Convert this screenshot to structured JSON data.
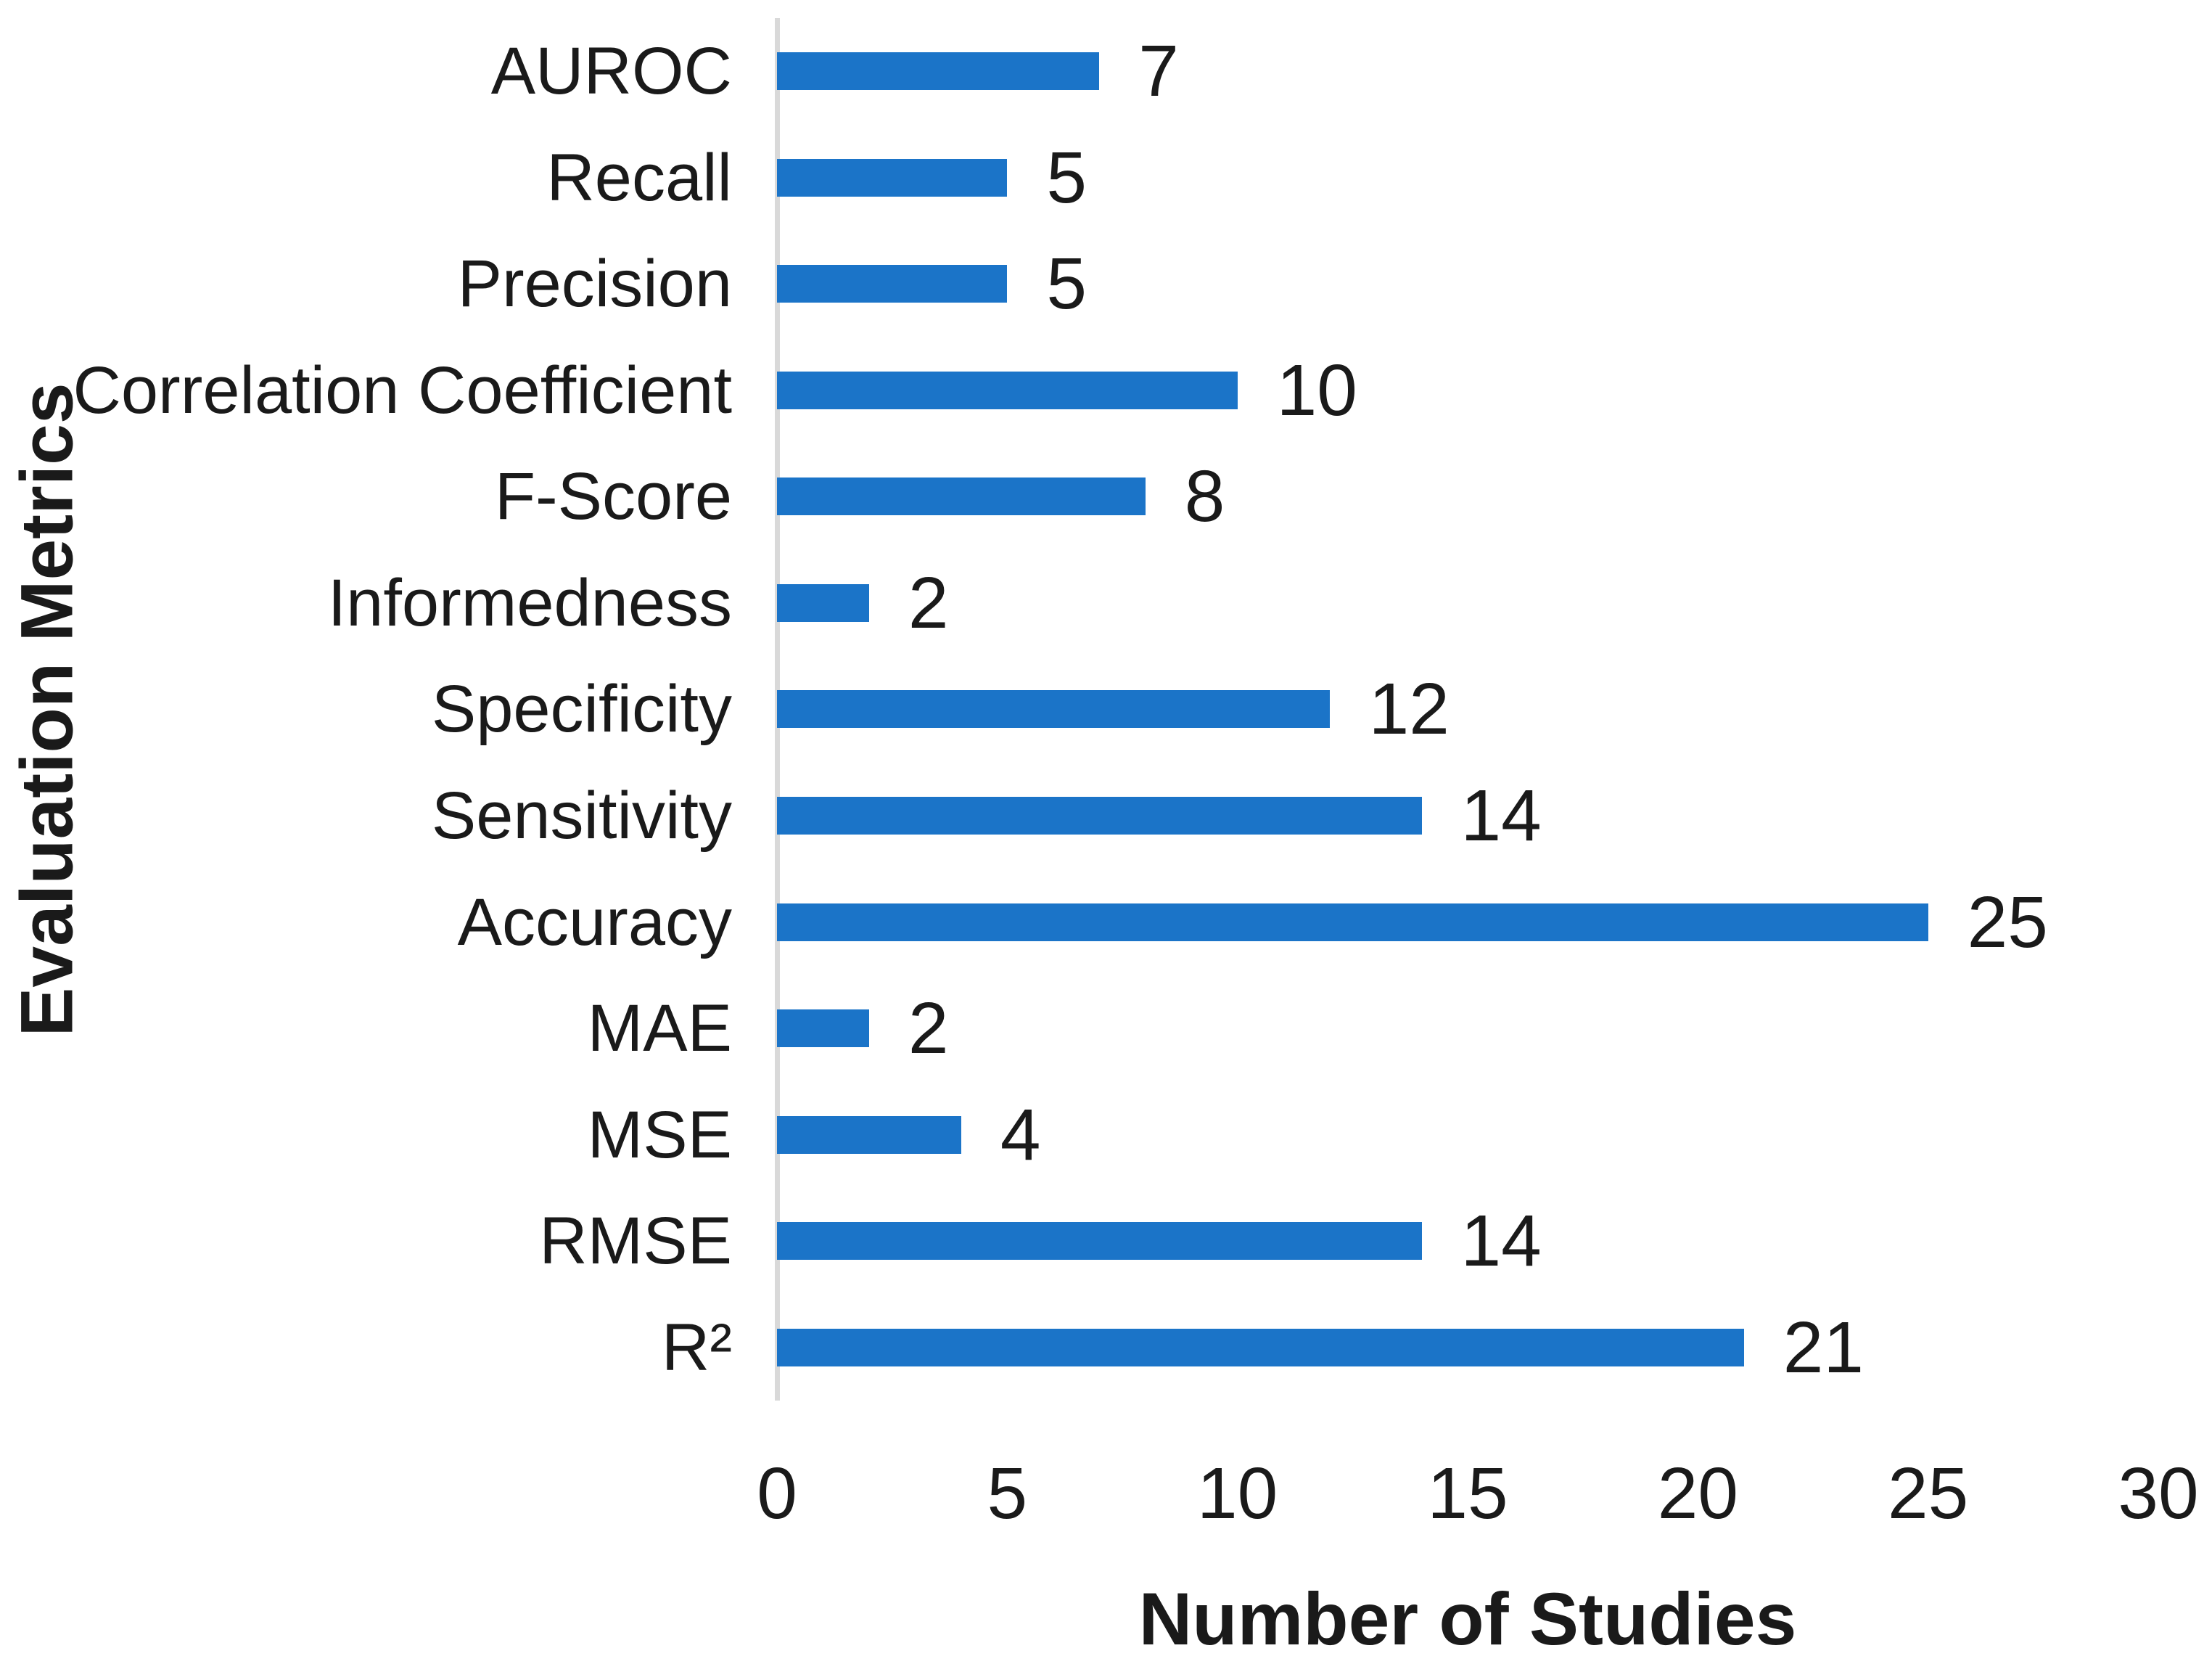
{
  "chart_data": {
    "type": "bar",
    "orientation": "horizontal",
    "title": "",
    "categories": [
      "AUROC",
      "Recall",
      "Precision",
      "Correlation Coefficient",
      "F-Score",
      "Informedness",
      "Specificity",
      "Sensitivity",
      "Accuracy",
      "MAE",
      "MSE",
      "RMSE",
      "R²"
    ],
    "values": [
      7,
      5,
      5,
      10,
      8,
      2,
      12,
      14,
      25,
      2,
      4,
      14,
      21
    ],
    "data_labels": [
      "7",
      "5",
      "5",
      "10",
      "8",
      "2",
      "12",
      "14",
      "25",
      "2",
      "4",
      "14",
      "21"
    ],
    "xlabel": "Number of Studies",
    "ylabel": "Evaluation Metrics",
    "xlim": [
      0,
      30
    ],
    "x_ticks": [
      "0",
      "5",
      "10",
      "15",
      "20",
      "25",
      "30"
    ],
    "grid": false,
    "legend": "none",
    "colors": {
      "bar": "#1b74c8",
      "axis_line": "#d9d9d9",
      "text": "#1a1a1a",
      "background": "#ffffff"
    }
  }
}
